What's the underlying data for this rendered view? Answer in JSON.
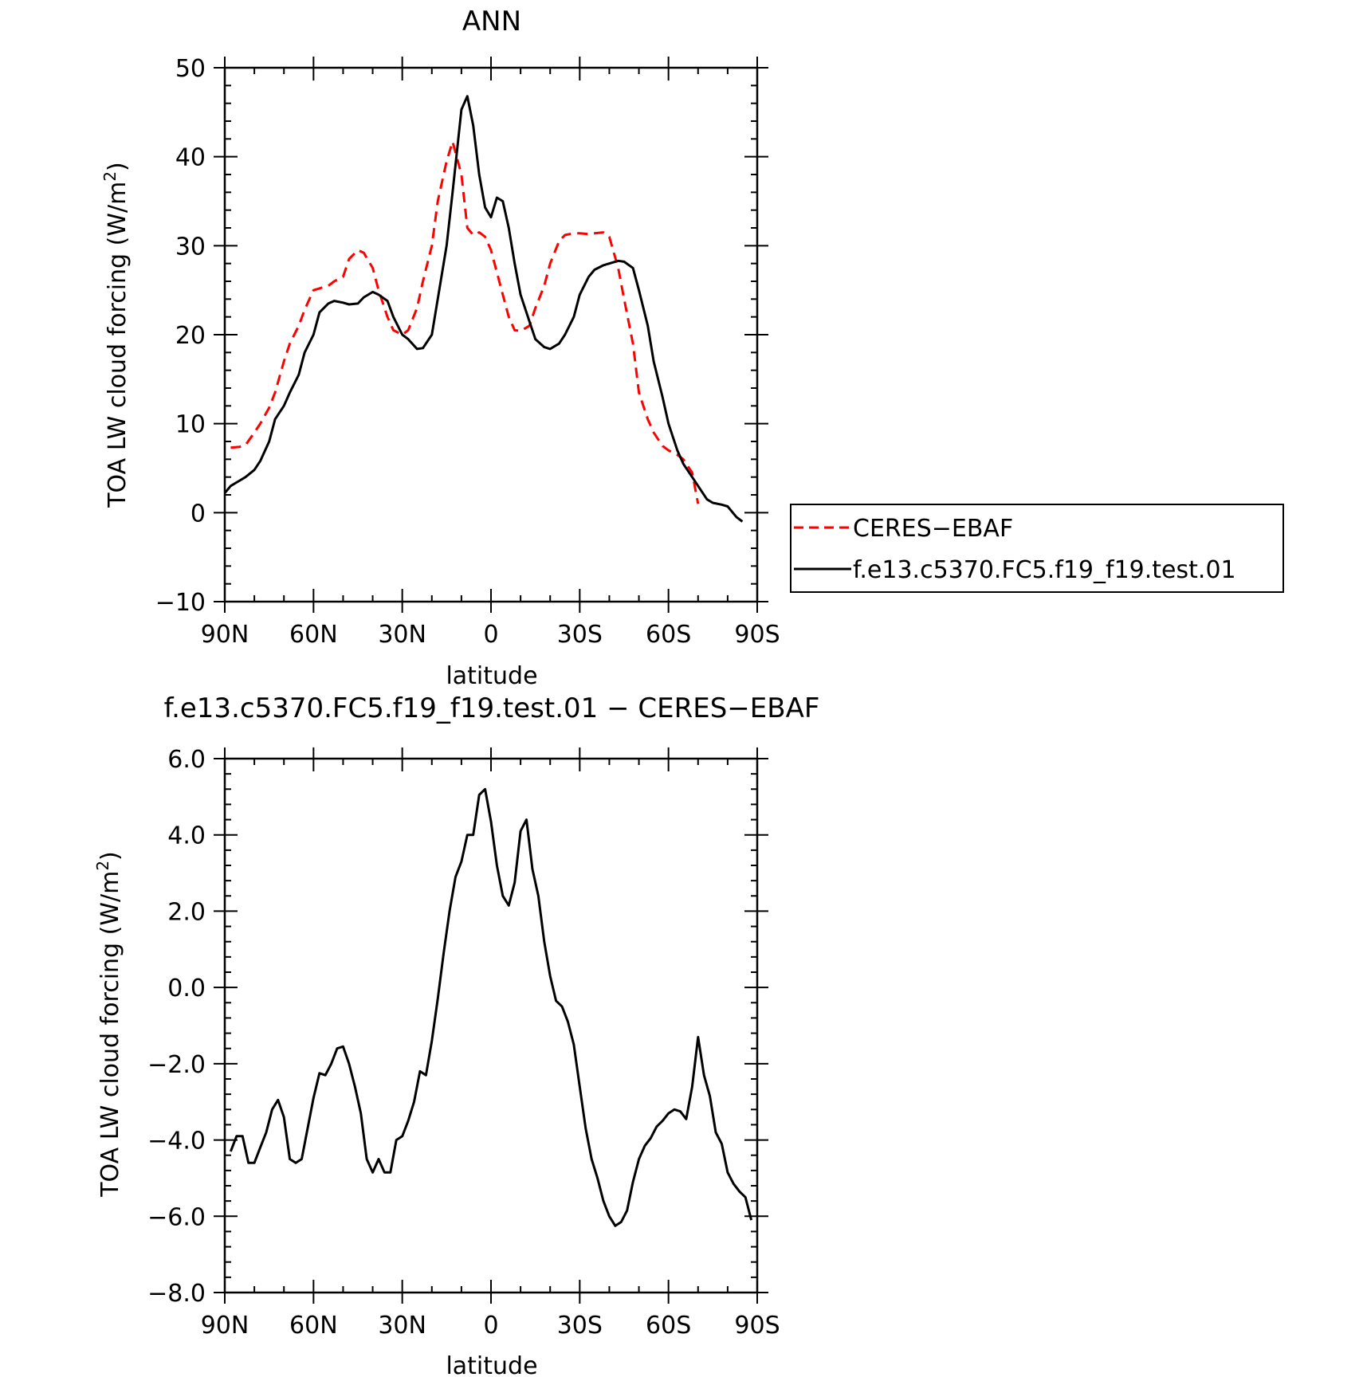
{
  "chart_data": [
    {
      "type": "line",
      "title": "ANN",
      "xlabel": "latitude",
      "ylabel": "TOA LW cloud forcing (W/m",
      "ylabel_sup": "2",
      "ylabel_end": ")",
      "xlim": [
        -90,
        90
      ],
      "ylim": [
        -10,
        50
      ],
      "x_ticks": [
        -90,
        -60,
        -30,
        0,
        30,
        60,
        90
      ],
      "x_tick_labels": [
        "90N",
        "60N",
        "30N",
        "0",
        "30S",
        "60S",
        "90S"
      ],
      "y_ticks": [
        -10,
        0,
        10,
        20,
        30,
        40,
        50
      ],
      "y_tick_labels": [
        "−10",
        "0",
        "10",
        "20",
        "30",
        "40",
        "50"
      ],
      "grid": false,
      "legend_position": "right",
      "series": [
        {
          "name": "CERES−EBAF",
          "color": "#ff0000",
          "dash": "dashed",
          "x": [
            -88,
            -85,
            -83,
            -80,
            -78,
            -75,
            -73,
            -70,
            -68,
            -65,
            -63,
            -60,
            -58,
            -55,
            -53,
            -50,
            -48,
            -45,
            -43,
            -40,
            -38,
            -35,
            -33,
            -30,
            -28,
            -25,
            -23,
            -20,
            -18,
            -15,
            -13,
            -10,
            -8,
            -6,
            -4,
            -2,
            0,
            2,
            4,
            6,
            8,
            10,
            13,
            15,
            18,
            20,
            23,
            25,
            28,
            30,
            33,
            35,
            38,
            40,
            43,
            45,
            48,
            50,
            53,
            55,
            58,
            60,
            63,
            65,
            68,
            70,
            73,
            75,
            78,
            80,
            83,
            85,
            87,
            88,
            89
          ],
          "y": [
            7.3,
            7.4,
            7.6,
            9.0,
            10.0,
            11.8,
            13.5,
            17.0,
            19.0,
            21.0,
            22.8,
            25.0,
            25.2,
            25.5,
            26.0,
            26.5,
            28.5,
            29.5,
            29.2,
            27.5,
            25.0,
            22.0,
            20.5,
            20.0,
            20.5,
            23.0,
            26.0,
            30.0,
            35.0,
            39.5,
            41.7,
            38.0,
            32.0,
            31.2,
            31.5,
            31.0,
            29.5,
            27.0,
            24.5,
            22.0,
            20.5,
            20.4,
            21.0,
            23.0,
            25.5,
            28.0,
            30.5,
            31.2,
            31.4,
            31.4,
            31.3,
            31.4,
            31.5,
            31.0,
            27.5,
            24.0,
            19.0,
            13.5,
            10.5,
            9.0,
            7.5,
            7.0,
            6.5,
            6.0,
            4.5,
            1.0,
            null,
            null,
            null,
            null,
            null,
            null,
            null,
            null,
            null
          ]
        },
        {
          "name": "f.e13.c5370.FC5.f19_f19.test.01",
          "color": "#000000",
          "dash": "solid",
          "x": [
            -90,
            -88,
            -85,
            -83,
            -80,
            -78,
            -75,
            -73,
            -70,
            -68,
            -65,
            -63,
            -60,
            -58,
            -55,
            -53,
            -50,
            -48,
            -45,
            -43,
            -40,
            -38,
            -35,
            -33,
            -30,
            -28,
            -25,
            -23,
            -20,
            -18,
            -15,
            -13,
            -10,
            -8,
            -6,
            -4,
            -2,
            0,
            2,
            4,
            6,
            8,
            10,
            13,
            15,
            18,
            20,
            23,
            25,
            28,
            30,
            33,
            35,
            38,
            40,
            43,
            45,
            48,
            50,
            53,
            55,
            58,
            60,
            63,
            65,
            68,
            70,
            73,
            75,
            78,
            80,
            83,
            85,
            88,
            90
          ],
          "y": [
            2.2,
            3.0,
            3.6,
            4.0,
            4.8,
            5.8,
            8.0,
            10.5,
            12.0,
            13.5,
            15.5,
            18.0,
            20.0,
            22.5,
            23.5,
            23.8,
            23.6,
            23.4,
            23.5,
            24.2,
            24.8,
            24.5,
            23.8,
            22.0,
            20.0,
            19.5,
            18.4,
            18.5,
            20.0,
            24.0,
            30.0,
            36.0,
            45.3,
            46.8,
            43.5,
            38.0,
            34.3,
            33.2,
            35.4,
            35.0,
            32.0,
            28.0,
            24.5,
            21.5,
            19.5,
            18.6,
            18.4,
            19.0,
            20.0,
            22.0,
            24.5,
            26.5,
            27.3,
            27.8,
            28.0,
            28.3,
            28.2,
            27.5,
            25.0,
            21.0,
            17.0,
            13.0,
            10.0,
            7.0,
            5.5,
            4.0,
            3.0,
            1.5,
            1.1,
            0.9,
            0.7,
            -0.5,
            -1.0,
            null,
            null
          ]
        }
      ]
    },
    {
      "type": "line",
      "title": "f.e13.c5370.FC5.f19_f19.test.01 − CERES−EBAF",
      "xlabel": "latitude",
      "ylabel": "TOA LW cloud forcing (W/m",
      "ylabel_sup": "2",
      "ylabel_end": ")",
      "xlim": [
        -90,
        90
      ],
      "ylim": [
        -8,
        6
      ],
      "x_ticks": [
        -90,
        -60,
        -30,
        0,
        30,
        60,
        90
      ],
      "x_tick_labels": [
        "90N",
        "60N",
        "30N",
        "0",
        "30S",
        "60S",
        "90S"
      ],
      "y_ticks": [
        -8,
        -6,
        -4,
        -2,
        0,
        2,
        4,
        6
      ],
      "y_tick_labels": [
        "−8.0",
        "−6.0",
        "−4.0",
        "−2.0",
        "0.0",
        "2.0",
        "4.0",
        "6.0"
      ],
      "grid": false,
      "series": [
        {
          "color": "#000000",
          "dash": "solid",
          "x": [
            -88,
            -86,
            -84,
            -82,
            -80,
            -78,
            -76,
            -74,
            -72,
            -70,
            -68,
            -66,
            -64,
            -62,
            -60,
            -58,
            -56,
            -54,
            -52,
            -50,
            -48,
            -46,
            -44,
            -42,
            -40,
            -38,
            -36,
            -34,
            -32,
            -30,
            -28,
            -26,
            -24,
            -22,
            -20,
            -18,
            -16,
            -14,
            -12,
            -10,
            -8,
            -6,
            -4,
            -2,
            0,
            2,
            4,
            6,
            8,
            10,
            12,
            14,
            16,
            18,
            20,
            22,
            24,
            26,
            28,
            30,
            32,
            34,
            36,
            38,
            40,
            42,
            44,
            46,
            48,
            50,
            52,
            54,
            56,
            58,
            60,
            62,
            64,
            66,
            68,
            70,
            72,
            74,
            76,
            78,
            80,
            82,
            84,
            86,
            88
          ],
          "y": [
            -4.3,
            -3.9,
            -3.9,
            -4.6,
            -4.6,
            -4.2,
            -3.8,
            -3.2,
            -2.95,
            -3.4,
            -4.5,
            -4.6,
            -4.5,
            -3.7,
            -2.9,
            -2.25,
            -2.3,
            -2.0,
            -1.6,
            -1.55,
            -2.0,
            -2.6,
            -3.3,
            -4.5,
            -4.85,
            -4.5,
            -4.85,
            -4.85,
            -4.0,
            -3.9,
            -3.5,
            -3.0,
            -2.2,
            -2.3,
            -1.4,
            -0.3,
            0.9,
            2.0,
            2.9,
            3.3,
            4.0,
            4.0,
            5.05,
            5.2,
            4.35,
            3.2,
            2.4,
            2.15,
            2.75,
            4.1,
            4.4,
            3.1,
            2.4,
            1.2,
            0.3,
            -0.35,
            -0.5,
            -0.9,
            -1.5,
            -2.6,
            -3.7,
            -4.5,
            -5.0,
            -5.6,
            -6.0,
            -6.25,
            -6.15,
            -5.85,
            -5.1,
            -4.5,
            -4.15,
            -3.95,
            -3.65,
            -3.5,
            -3.3,
            -3.2,
            -3.25,
            -3.45,
            -2.6,
            -1.3,
            -2.3,
            -2.85,
            -3.8,
            -4.1,
            -4.85,
            -5.15,
            -5.35,
            -5.5,
            -6.1
          ]
        }
      ]
    }
  ]
}
